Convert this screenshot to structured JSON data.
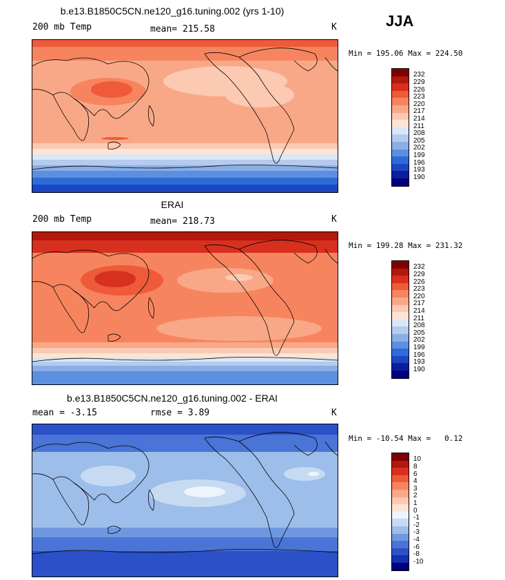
{
  "season": "JJA",
  "panels": [
    {
      "title": "b.e13.B1850C5CN.ne120_g16.tuning.002 (yrs 1-10)",
      "left_label": "200 mb Temp",
      "mid_label": "mean= 215.58",
      "units": "K",
      "minmax": "Min = 195.06 Max = 224.50",
      "colorbar_labels": [
        "232",
        "229",
        "226",
        "223",
        "220",
        "217",
        "214",
        "211",
        "208",
        "205",
        "202",
        "199",
        "196",
        "193",
        "190"
      ]
    },
    {
      "title": "ERAI",
      "left_label": "200 mb Temp",
      "mid_label": "mean= 218.73",
      "units": "K",
      "minmax": "Min = 199.28 Max = 231.32",
      "colorbar_labels": [
        "232",
        "229",
        "226",
        "223",
        "220",
        "217",
        "214",
        "211",
        "208",
        "205",
        "202",
        "199",
        "196",
        "193",
        "190"
      ]
    },
    {
      "title": "b.e13.B1850C5CN.ne120_g16.tuning.002 - ERAI",
      "left_label": "mean =  -3.15",
      "mid_label": "rmse =   3.89",
      "units": "K",
      "minmax": "Min = -10.54 Max =   0.12",
      "colorbar_labels": [
        "10",
        "8",
        "6",
        "4",
        "3",
        "2",
        "1",
        "0",
        "-1",
        "-2",
        "-3",
        "-4",
        "-6",
        "-8",
        "-10"
      ]
    }
  ],
  "colors": {
    "temp_scale": [
      "#7f0000",
      "#b2180c",
      "#d7301f",
      "#ef5a3a",
      "#f6855f",
      "#f9a887",
      "#fcc9b2",
      "#fde4d6",
      "#d9e7f6",
      "#b4cbee",
      "#8aaee6",
      "#5c8fe0",
      "#2f6bd6",
      "#1a47c4",
      "#0b1f9e",
      "#000080"
    ],
    "diff_scale": [
      "#7f0000",
      "#b2180c",
      "#d7301f",
      "#ef5a3a",
      "#f6855f",
      "#f9a887",
      "#fcc9b2",
      "#fde4d6",
      "#eef4fc",
      "#c6daf2",
      "#9dbdea",
      "#7098e0",
      "#4a74d6",
      "#2b50c8",
      "#1331b0",
      "#000080"
    ]
  }
}
